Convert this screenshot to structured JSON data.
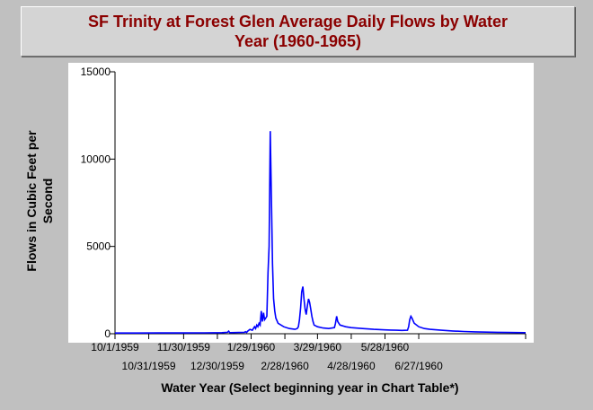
{
  "chart_data": {
    "type": "line",
    "title": "SF Trinity at Forest Glen Average Daily Flows by Water Year (1960-1965)",
    "title_lines": [
      "SF Trinity at Forest Glen Average Daily Flows by Water",
      "Year (1960-1965)"
    ],
    "xlabel": "Water Year (Select beginning year in Chart Table*)",
    "ylabel_lines": [
      "Flows in Cubic Feet per",
      "Second"
    ],
    "ylim": [
      0,
      15000
    ],
    "yticks": [
      0,
      5000,
      10000,
      15000
    ],
    "xlim": [
      0,
      365
    ],
    "xticks_upper": [
      {
        "day": 0,
        "label": "10/1/1959"
      },
      {
        "day": 61,
        "label": "11/30/1959"
      },
      {
        "day": 121,
        "label": "1/29/1960"
      },
      {
        "day": 180,
        "label": "3/29/1960"
      },
      {
        "day": 240,
        "label": "5/28/1960"
      }
    ],
    "xticks_lower": [
      {
        "day": 30,
        "label": "10/31/1959"
      },
      {
        "day": 91,
        "label": "12/30/1959"
      },
      {
        "day": 151,
        "label": "2/28/1960"
      },
      {
        "day": 210,
        "label": "4/28/1960"
      },
      {
        "day": 270,
        "label": "6/27/1960"
      }
    ],
    "grid": false,
    "colors": {
      "line": "#0000ff",
      "title": "#8b0000",
      "plot_bg": "#ffffff",
      "page_bg": "#c0c0c0"
    },
    "series": [
      {
        "x": [
          0,
          20,
          40,
          60,
          80,
          95,
          100,
          101,
          102,
          110,
          115,
          116,
          117,
          118,
          120,
          122,
          124,
          125,
          126,
          127,
          128,
          129,
          130,
          131,
          132,
          133,
          134,
          135,
          136,
          137,
          138,
          139,
          140,
          141,
          142,
          143,
          145,
          150,
          155,
          160,
          162,
          163,
          164,
          165,
          166,
          167,
          168,
          169,
          170,
          171,
          172,
          173,
          174,
          175,
          176,
          177,
          180,
          185,
          190,
          195,
          196,
          197,
          198,
          200,
          205,
          210,
          220,
          230,
          240,
          245,
          250,
          255,
          260,
          261,
          262,
          263,
          264,
          266,
          270,
          275,
          280,
          290,
          300,
          310,
          320,
          330,
          340,
          350,
          365
        ],
        "y": [
          40,
          40,
          45,
          45,
          50,
          60,
          80,
          150,
          60,
          70,
          80,
          120,
          70,
          150,
          250,
          200,
          400,
          300,
          500,
          400,
          600,
          500,
          1300,
          700,
          1200,
          800,
          900,
          1000,
          3500,
          5000,
          11600,
          8000,
          4000,
          2000,
          1300,
          900,
          600,
          400,
          300,
          250,
          300,
          400,
          800,
          1500,
          2400,
          2700,
          2000,
          1400,
          1100,
          1600,
          2000,
          1800,
          1400,
          1000,
          700,
          500,
          400,
          330,
          300,
          350,
          600,
          1000,
          700,
          500,
          400,
          350,
          300,
          250,
          220,
          210,
          200,
          190,
          200,
          400,
          800,
          1000,
          900,
          600,
          400,
          300,
          250,
          200,
          160,
          130,
          110,
          90,
          80,
          70,
          60
        ]
      }
    ]
  }
}
